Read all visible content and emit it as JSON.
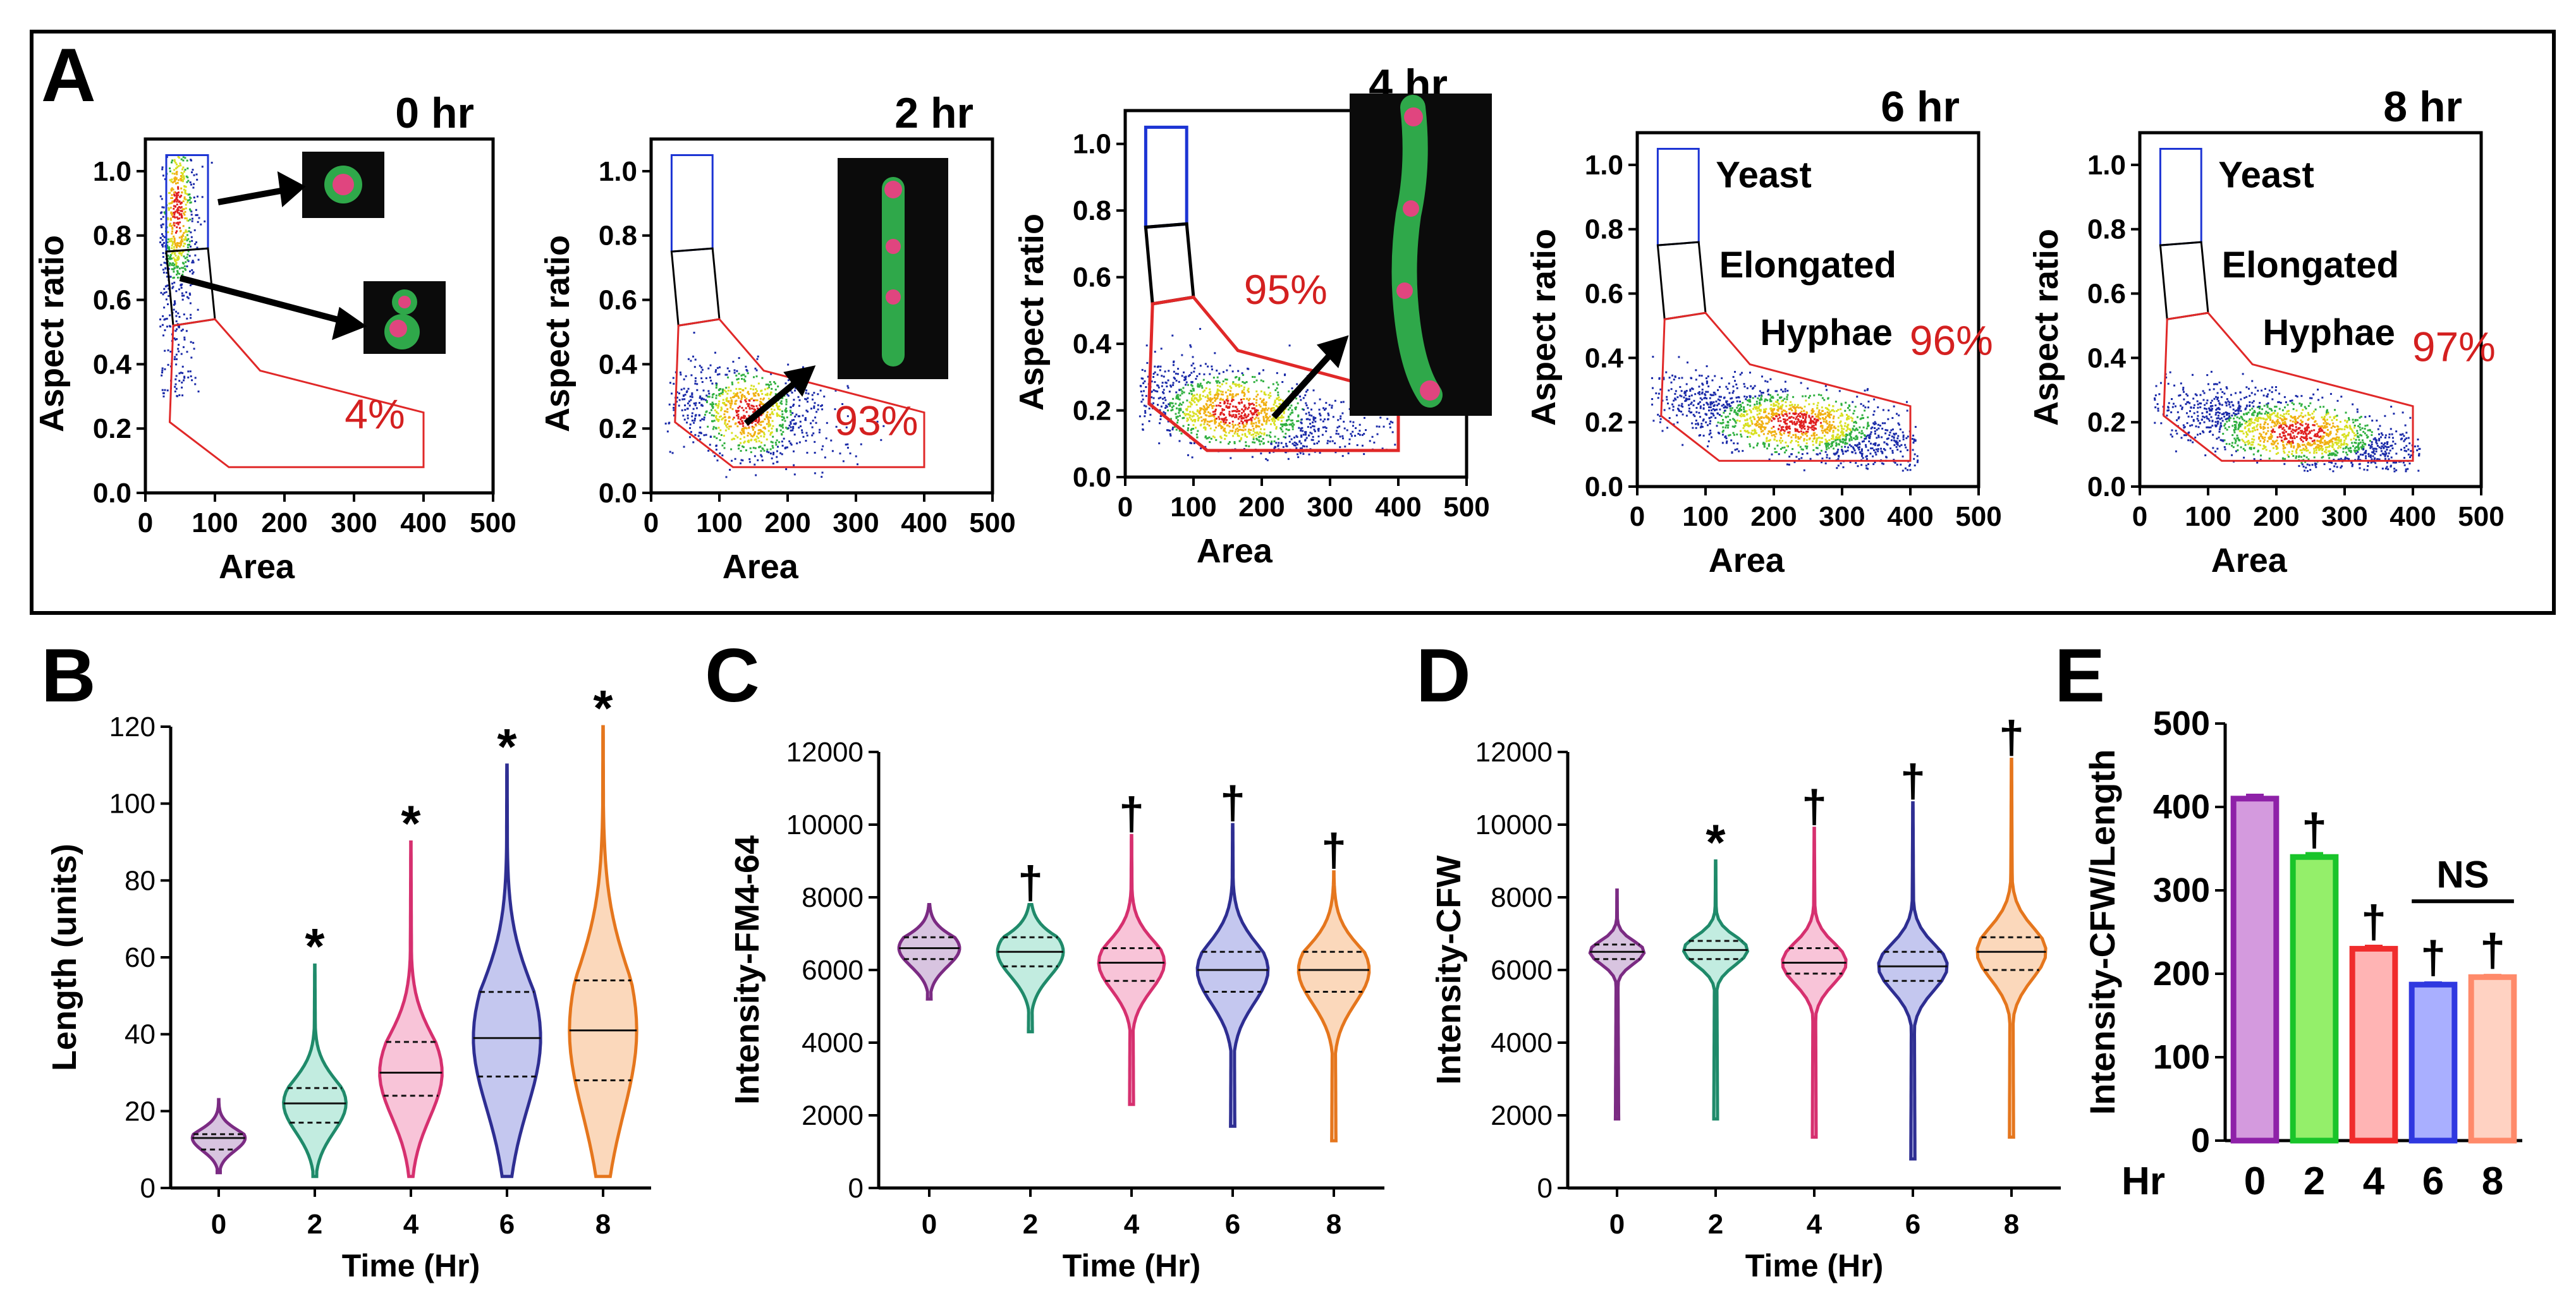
{
  "panel_labels": [
    "A",
    "B",
    "C",
    "D",
    "E"
  ],
  "chart_data": [
    {
      "panel": "A",
      "type": "scatter",
      "subtype": "flow-cytometry-density",
      "xlabel": "Area",
      "ylabel": "Aspect ratio",
      "xlim": [
        0,
        500
      ],
      "ylim": [
        0,
        1.1
      ],
      "xticks": [
        "0",
        "100",
        "200",
        "300",
        "400",
        "500"
      ],
      "yticks": [
        "0.0",
        "0.2",
        "0.4",
        "0.6",
        "0.8",
        "1.0"
      ],
      "gate_names": [
        "Yeast",
        "Elongated",
        "Hyphae"
      ],
      "gates": {
        "yeast": [
          [
            30,
            1.05
          ],
          [
            90,
            1.05
          ],
          [
            90,
            0.76
          ],
          [
            30,
            0.75
          ]
        ],
        "elongated": [
          [
            30,
            0.75
          ],
          [
            90,
            0.76
          ],
          [
            100,
            0.54
          ],
          [
            40,
            0.52
          ]
        ],
        "hyphae": [
          [
            40,
            0.52
          ],
          [
            100,
            0.54
          ],
          [
            165,
            0.38
          ],
          [
            400,
            0.25
          ],
          [
            400,
            0.08
          ],
          [
            120,
            0.08
          ],
          [
            35,
            0.22
          ]
        ]
      },
      "plots": [
        {
          "title": "0 hr",
          "hyphae_percent": "4%",
          "show_gate_names": false,
          "cluster": {
            "area": 45,
            "ar": 0.88,
            "sa": 14,
            "sr": 0.12
          },
          "n": 700
        },
        {
          "title": "2 hr",
          "hyphae_percent": "93%",
          "show_gate_names": false,
          "cluster": {
            "area": 140,
            "ar": 0.25,
            "sa": 45,
            "sr": 0.07
          },
          "n": 900
        },
        {
          "title": "4 hr",
          "hyphae_percent": "95%",
          "show_gate_names": false,
          "cluster": {
            "area": 160,
            "ar": 0.2,
            "sa": 70,
            "sr": 0.06
          },
          "n": 1400
        },
        {
          "title": "6 hr",
          "hyphae_percent": "96%",
          "show_gate_names": true,
          "cluster": {
            "area": 230,
            "ar": 0.2,
            "sa": 80,
            "sr": 0.05
          },
          "n": 1600
        },
        {
          "title": "8 hr",
          "hyphae_percent": "97%",
          "show_gate_names": true,
          "cluster": {
            "area": 230,
            "ar": 0.17,
            "sa": 80,
            "sr": 0.05
          },
          "n": 1600
        }
      ]
    },
    {
      "panel": "B",
      "type": "violin",
      "xlabel": "Time (Hr)",
      "ylabel": "Length (units)",
      "ylim": [
        0,
        120
      ],
      "yticks": [
        "0",
        "20",
        "40",
        "60",
        "80",
        "100",
        "120"
      ],
      "categories": [
        "0",
        "2",
        "4",
        "6",
        "8"
      ],
      "colors": [
        "#7b2b83",
        "#1f8a6a",
        "#d6306f",
        "#2e2e92",
        "#e5761d"
      ],
      "fills": [
        "#d8c4e0",
        "#c2ece0",
        "#f8c4d8",
        "#c4c7ef",
        "#fbd8bb"
      ],
      "violins": [
        {
          "min": 4,
          "q1": 10,
          "median": 13,
          "q3": 14,
          "max": 23,
          "width": 0.55
        },
        {
          "min": 3,
          "q1": 17,
          "median": 22,
          "q3": 26,
          "max": 58,
          "width": 0.65
        },
        {
          "min": 3,
          "q1": 24,
          "median": 30,
          "q3": 38,
          "max": 90,
          "width": 0.65
        },
        {
          "min": 3,
          "q1": 29,
          "median": 39,
          "q3": 51,
          "max": 110,
          "width": 0.7
        },
        {
          "min": 3,
          "q1": 28,
          "median": 41,
          "q3": 54,
          "max": 120,
          "width": 0.7
        }
      ],
      "annotations": [
        "",
        "*",
        "*",
        "*",
        "*"
      ]
    },
    {
      "panel": "C",
      "type": "violin",
      "xlabel": "Time (Hr)",
      "ylabel": "Intensity-FM4-64",
      "ylim": [
        0,
        12000
      ],
      "yticks": [
        "0",
        "2000",
        "4000",
        "6000",
        "8000",
        "10000",
        "12000"
      ],
      "categories": [
        "0",
        "2",
        "4",
        "6",
        "8"
      ],
      "colors": [
        "#7b2b83",
        "#1f8a6a",
        "#d6306f",
        "#2e2e92",
        "#e5761d"
      ],
      "fills": [
        "#d8c4e0",
        "#c2ece0",
        "#f8c4d8",
        "#c4c7ef",
        "#fbd8bb"
      ],
      "violins": [
        {
          "min": 5200,
          "q1": 6300,
          "median": 6600,
          "q3": 6900,
          "max": 7800,
          "width": 0.6
        },
        {
          "min": 4300,
          "q1": 6100,
          "median": 6500,
          "q3": 6900,
          "max": 7800,
          "width": 0.65
        },
        {
          "min": 2300,
          "q1": 5700,
          "median": 6200,
          "q3": 6600,
          "max": 9700,
          "width": 0.65
        },
        {
          "min": 1700,
          "q1": 5400,
          "median": 6000,
          "q3": 6500,
          "max": 10000,
          "width": 0.7
        },
        {
          "min": 1300,
          "q1": 5400,
          "median": 6000,
          "q3": 6500,
          "max": 8700,
          "width": 0.7
        }
      ],
      "annotations": [
        "",
        "†",
        "†",
        "†",
        "†"
      ]
    },
    {
      "panel": "D",
      "type": "violin",
      "xlabel": "Time (Hr)",
      "ylabel": "Intensity-CFW",
      "ylim": [
        0,
        12000
      ],
      "yticks": [
        "0",
        "2000",
        "4000",
        "6000",
        "8000",
        "10000",
        "12000"
      ],
      "categories": [
        "0",
        "2",
        "4",
        "6",
        "8"
      ],
      "colors": [
        "#7b2b83",
        "#1f8a6a",
        "#d6306f",
        "#2e2e92",
        "#e5761d"
      ],
      "fills": [
        "#d8c4e0",
        "#c2ece0",
        "#f8c4d8",
        "#c4c7ef",
        "#fbd8bb"
      ],
      "violins": [
        {
          "min": 1900,
          "q1": 6300,
          "median": 6500,
          "q3": 6700,
          "max": 8200,
          "width": 0.55
        },
        {
          "min": 1900,
          "q1": 6300,
          "median": 6550,
          "q3": 6800,
          "max": 9000,
          "width": 0.65
        },
        {
          "min": 1400,
          "q1": 5900,
          "median": 6200,
          "q3": 6600,
          "max": 9900,
          "width": 0.65
        },
        {
          "min": 800,
          "q1": 5700,
          "median": 6100,
          "q3": 6500,
          "max": 10600,
          "width": 0.7
        },
        {
          "min": 1400,
          "q1": 6000,
          "median": 6500,
          "q3": 6900,
          "max": 11800,
          "width": 0.7
        }
      ],
      "annotations": [
        "",
        "*",
        "†",
        "†",
        "†"
      ]
    },
    {
      "panel": "E",
      "type": "bar",
      "xlabel": "Hr",
      "ylabel": "Intensity-CFW/Length",
      "ylim": [
        0,
        500
      ],
      "yticks": [
        "0",
        "100",
        "200",
        "300",
        "400",
        "500"
      ],
      "categories": [
        "0",
        "2",
        "4",
        "6",
        "8"
      ],
      "values": [
        410,
        340,
        230,
        187,
        196
      ],
      "errors": [
        4,
        4,
        3,
        2,
        2
      ],
      "bar_colors": [
        "#8e21a8",
        "#19c42a",
        "#f02c2c",
        "#2f38e0",
        "#ff8a6a"
      ],
      "bar_fills": [
        "#d49ade",
        "#94ef6a",
        "#ffb4b4",
        "#a9afff",
        "#ffd2c2"
      ],
      "annotations": [
        "",
        "†",
        "†",
        "†",
        "†"
      ],
      "bracket_label": "NS",
      "bracket_between": [
        "6",
        "8"
      ]
    }
  ]
}
